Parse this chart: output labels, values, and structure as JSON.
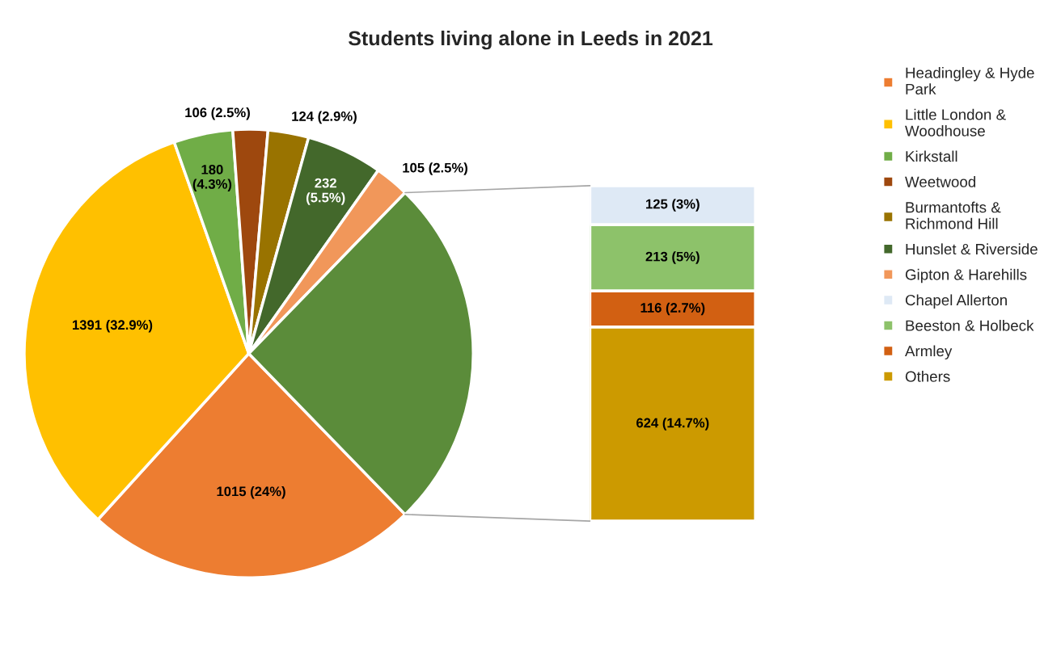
{
  "chart_data": [
    {
      "type": "pie",
      "title": "Students living alone in Leeds in 2021",
      "categories": [
        "Headingley & Hyde Park",
        "Little London & Woodhouse",
        "Kirkstall",
        "Weetwood",
        "Burmantofts & Richmond Hill",
        "Hunslet & Riverside",
        "Gipton & Harehills",
        null
      ],
      "values": [
        1015,
        1391,
        180,
        106,
        124,
        232,
        105,
        1078
      ],
      "colors": [
        "#ed7d31",
        "#ffc000",
        "#70ad47",
        "#9e480e",
        "#997300",
        "#43682b",
        "#f1975a",
        "#5b8c3a"
      ],
      "value_labels": [
        "1015 (24%)",
        "1391 (32.9%)",
        "180 (4.3%)",
        "106 (2.5%)",
        "124 (2.9%)",
        "232 (5.5%)",
        "105 (2.5%)",
        null
      ],
      "legend": "right"
    },
    {
      "type": "bar",
      "stacked": true,
      "categories": [
        null
      ],
      "series": [
        {
          "name": "Others",
          "color": "#cc9a00",
          "values": [
            624
          ],
          "value_labels": [
            "624 (14.7%)"
          ]
        },
        {
          "name": "Armley",
          "color": "#d26012",
          "values": [
            116
          ],
          "value_labels": [
            "116 (2.7%)"
          ]
        },
        {
          "name": "Beeston & Holbeck",
          "color": "#8dc26a",
          "values": [
            213
          ],
          "value_labels": [
            "213 (5%)"
          ]
        },
        {
          "name": "Chapel Allerton",
          "color": "#dee9f5",
          "values": [
            125
          ],
          "value_labels": [
            "125 (3%)"
          ]
        }
      ],
      "legend": "right"
    }
  ]
}
